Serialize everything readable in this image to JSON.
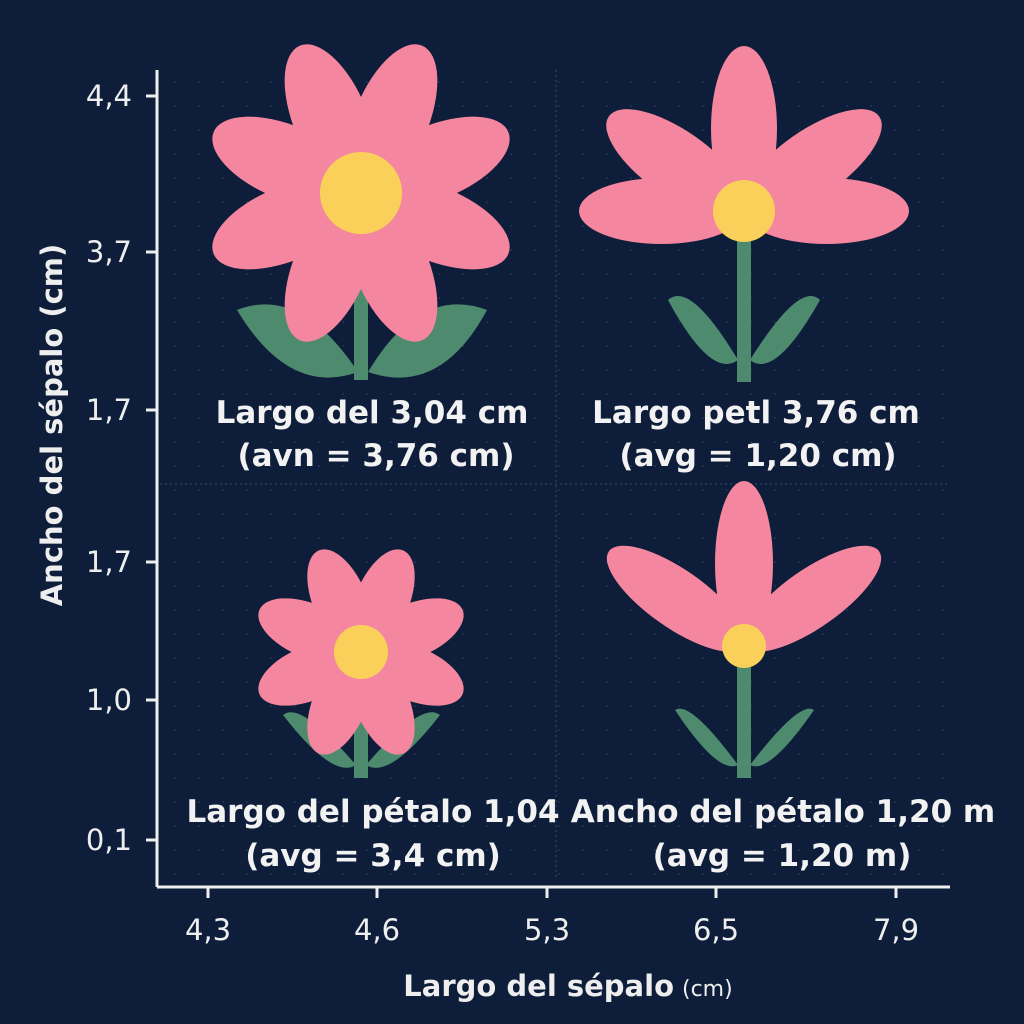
{
  "chart_data": {
    "type": "pictograph",
    "xlabel": "Largo del sépalo",
    "xlabel_unit": "(cm)",
    "ylabel": "Ancho del sépalo (cm)",
    "x_ticks": [
      "4,3",
      "4,6",
      "5,3",
      "6,5",
      "7,9"
    ],
    "y_ticks": [
      "4,4",
      "3,7",
      "1,7",
      "1,7",
      "1,0",
      "0,1"
    ],
    "grid": true,
    "panels": [
      {
        "line1": "Largo del 3,04 cm",
        "line2": "(avn = 3,76 cm)",
        "flower": "daisy-large"
      },
      {
        "line1": "Largo petl 3,76 cm",
        "line2": "(avg = 1,20 cm)",
        "flower": "fan-large"
      },
      {
        "line1": "Largo del pétalo 1,04",
        "line2": "(avg = 3,4 cm)",
        "flower": "daisy-small"
      },
      {
        "line1": "Ancho del pétalo 1,20 m",
        "line2": "(avg = 1,20 m)",
        "flower": "fan-small"
      }
    ],
    "colors": {
      "background": "#0d1d3a",
      "petal": "#f4879f",
      "center": "#fbd05a",
      "stem": "#4d8a6e",
      "axis": "#eeeeee"
    }
  }
}
